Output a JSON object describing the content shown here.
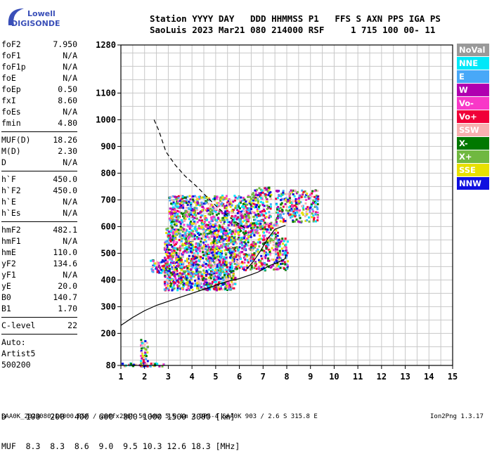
{
  "logo": {
    "line1": "Lowell",
    "line2": "DIGISONDE"
  },
  "header": {
    "row1": "Station YYYY DAY   DDD HHMMSS P1   FFS S AXN PPS IGA PS",
    "row2": "SaoLuis 2023 Mar21 080 214000 RSF     1 715 100 00- 11"
  },
  "params_group1": [
    {
      "k": "foF2",
      "v": "7.950"
    },
    {
      "k": "foF1",
      "v": "N/A"
    },
    {
      "k": "foF1p",
      "v": "N/A"
    },
    {
      "k": "foE",
      "v": "N/A"
    },
    {
      "k": "foEp",
      "v": "0.50"
    },
    {
      "k": "fxI",
      "v": "8.60"
    },
    {
      "k": "foEs",
      "v": "N/A"
    },
    {
      "k": "fmin",
      "v": "4.80"
    }
  ],
  "params_group2": [
    {
      "k": "MUF(D)",
      "v": "18.26"
    },
    {
      "k": "M(D)",
      "v": "2.30"
    },
    {
      "k": "D",
      "v": "N/A"
    }
  ],
  "params_group3": [
    {
      "k": "h`F",
      "v": "450.0"
    },
    {
      "k": "h`F2",
      "v": "450.0"
    },
    {
      "k": "h`E",
      "v": "N/A"
    },
    {
      "k": "h`Es",
      "v": "N/A"
    }
  ],
  "params_group4": [
    {
      "k": "hmF2",
      "v": "482.1"
    },
    {
      "k": "hmF1",
      "v": "N/A"
    },
    {
      "k": "hmE",
      "v": "110.0"
    },
    {
      "k": "yF2",
      "v": "134.6"
    },
    {
      "k": "yF1",
      "v": "N/A"
    },
    {
      "k": "yE",
      "v": "20.0"
    },
    {
      "k": "B0",
      "v": "140.7"
    },
    {
      "k": "B1",
      "v": "1.70"
    }
  ],
  "params_group5": [
    {
      "k": "C-level",
      "v": "22"
    }
  ],
  "auto": {
    "l1": "Auto:",
    "l2": "Artist5",
    "l3": "500200"
  },
  "legend": [
    {
      "label": "NoVal",
      "color": "#999999"
    },
    {
      "label": "NNE",
      "color": "#00e8f8"
    },
    {
      "label": "E",
      "color": "#48a8f8"
    },
    {
      "label": "W",
      "color": "#b000b0"
    },
    {
      "label": "Vo-",
      "color": "#f838c8"
    },
    {
      "label": "Vo+",
      "color": "#f00038"
    },
    {
      "label": "SSW",
      "color": "#f8b0b0"
    },
    {
      "label": "X-",
      "color": "#007800"
    },
    {
      "label": "X+",
      "color": "#70b840"
    },
    {
      "label": "SSE",
      "color": "#e8e000"
    },
    {
      "label": "NNW",
      "color": "#1010e0"
    }
  ],
  "footer": {
    "row1": "D    100  200  400  600  800 1000 1500 3000 [km]",
    "row2": "MUF  8.3  8.3  8.6  9.0  9.5 10.3 12.6 18.3 [MHz]",
    "file": "SAA0K_2023080214000.RSF / 280fx256h 50 kHz 5.0 km / DPS-4 SAA0K 903 / 2.6 S 315.8 E",
    "version": "Ion2Png 1.3.17"
  },
  "chart_data": {
    "type": "scatter",
    "xlim": [
      1,
      15
    ],
    "ylim": [
      80,
      1280
    ],
    "x_ticks": [
      1,
      2,
      3,
      4,
      5,
      6,
      7,
      8,
      9,
      10,
      11,
      12,
      13,
      14,
      15
    ],
    "y_ticks": [
      80,
      200,
      300,
      400,
      500,
      600,
      700,
      800,
      900,
      1000,
      1100,
      1280
    ],
    "grid": true,
    "echo_regions": [
      {
        "x": [
          2.8,
          5.8
        ],
        "y": [
          365,
          600
        ]
      },
      {
        "x": [
          3.0,
          6.5
        ],
        "y": [
          600,
          720
        ]
      },
      {
        "x": [
          2.2,
          3.0
        ],
        "y": [
          430,
          480
        ]
      },
      {
        "x": [
          5.8,
          7.6
        ],
        "y": [
          440,
          620
        ]
      },
      {
        "x": [
          6.5,
          7.3
        ],
        "y": [
          600,
          750
        ]
      },
      {
        "x": [
          7.5,
          9.3
        ],
        "y": [
          620,
          740
        ]
      },
      {
        "x": [
          7.5,
          8.0
        ],
        "y": [
          440,
          560
        ]
      },
      {
        "x": [
          1.8,
          2.1
        ],
        "y": [
          80,
          190
        ]
      },
      {
        "x": [
          1.0,
          2.8
        ],
        "y": [
          80,
          92
        ]
      }
    ],
    "profile_curve": {
      "x": [
        1.0,
        1.5,
        2.0,
        2.5,
        3.0,
        3.5,
        4.0,
        4.5,
        5.0,
        5.5,
        6.0,
        6.5,
        6.8,
        7.0,
        7.3,
        7.6,
        7.9,
        7.95,
        7.95
      ],
      "y": [
        230,
        260,
        285,
        305,
        320,
        335,
        350,
        365,
        380,
        395,
        405,
        420,
        430,
        440,
        455,
        465,
        478,
        482,
        495
      ]
    },
    "trace_curve": {
      "x": [
        6.3,
        6.6,
        6.9,
        7.2,
        7.5,
        7.8,
        7.95
      ],
      "y": [
        440,
        470,
        510,
        555,
        590,
        600,
        605
      ]
    },
    "dashed_curve": {
      "x": [
        2.4,
        2.6,
        2.9,
        3.3,
        3.7,
        4.2,
        4.7,
        5.1,
        5.5,
        5.9,
        6.3
      ],
      "y": [
        1000,
        960,
        880,
        830,
        790,
        750,
        705,
        670,
        640,
        615,
        590
      ]
    }
  }
}
